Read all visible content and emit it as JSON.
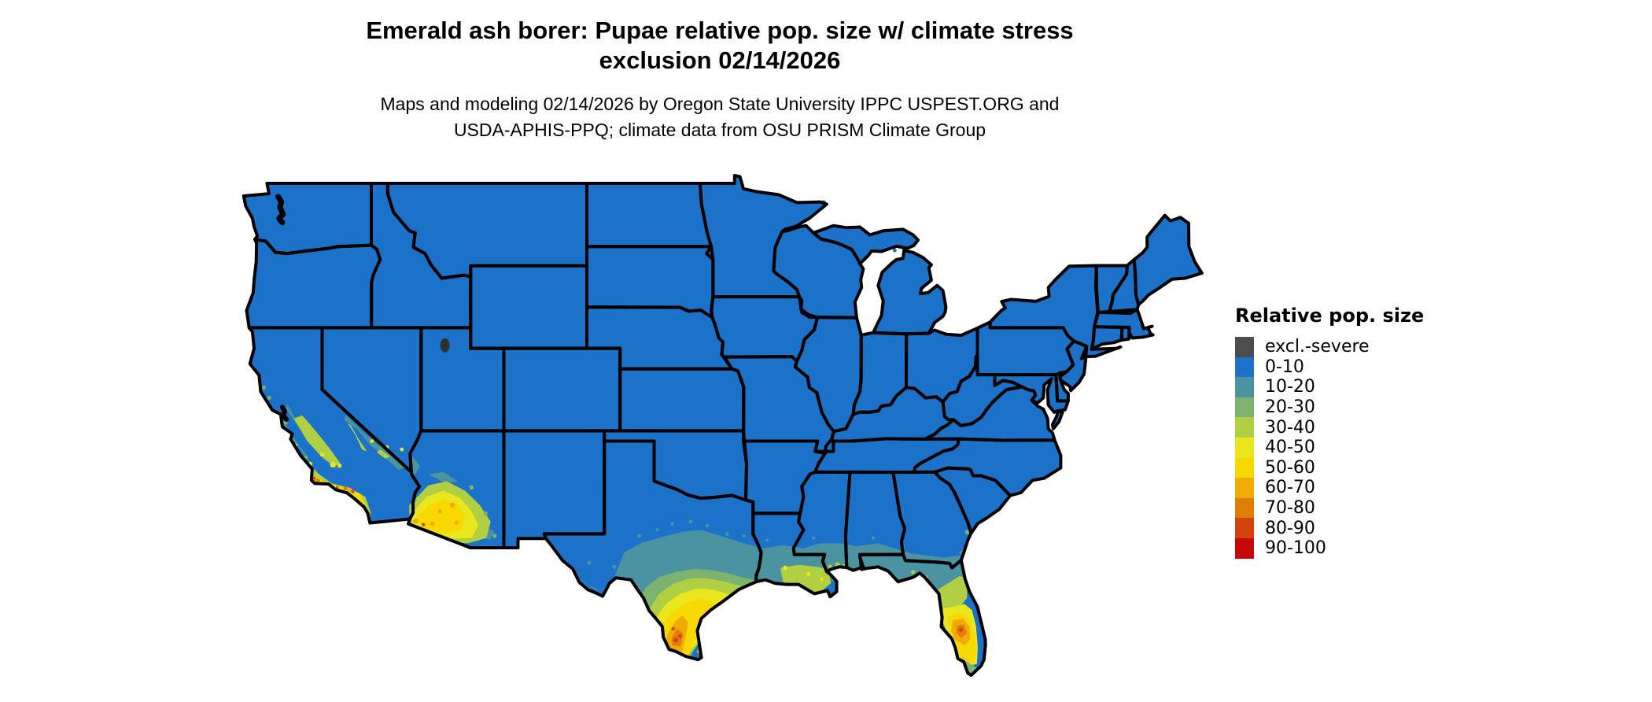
{
  "title": {
    "line1": "Emerald ash borer: Pupae relative pop. size w/ climate stress",
    "line2": "exclusion 02/14/2026"
  },
  "subtitle": {
    "line1": "Maps and modeling 02/14/2026 by Oregon State University IPPC USPEST.ORG and",
    "line2": "USDA-APHIS-PPQ; climate data from OSU PRISM Climate Group"
  },
  "legend": {
    "title": "Relative pop. size",
    "items": [
      {
        "label": "excl.-severe",
        "color": "#4d4d4d"
      },
      {
        "label": "0-10",
        "color": "#1c72c8"
      },
      {
        "label": "10-20",
        "color": "#4b93a1"
      },
      {
        "label": "20-30",
        "color": "#7cb46f"
      },
      {
        "label": "30-40",
        "color": "#b1cf42"
      },
      {
        "label": "40-50",
        "color": "#eae71f"
      },
      {
        "label": "50-60",
        "color": "#f7d800"
      },
      {
        "label": "60-70",
        "color": "#f0ab04"
      },
      {
        "label": "70-80",
        "color": "#e07c08"
      },
      {
        "label": "80-90",
        "color": "#d4420d"
      },
      {
        "label": "90-100",
        "color": "#c50808"
      }
    ]
  },
  "map": {
    "background": "#ffffff",
    "border_color": "#000000",
    "base_category": "0-10",
    "overlays": [
      {
        "id": "gulf-teal-band",
        "category": "10-20"
      },
      {
        "id": "texas-bigbend-teal",
        "category": "10-20"
      },
      {
        "id": "texas-teal-specks",
        "category": "10-20"
      },
      {
        "id": "texas-green-band",
        "category": "20-30"
      },
      {
        "id": "texas-yellowgreen-band",
        "category": "30-40"
      },
      {
        "id": "texas-yellow-band",
        "category": "40-50"
      },
      {
        "id": "texas-gold-core",
        "category": "50-60"
      },
      {
        "id": "texas-orange-blob",
        "category": "60-70"
      },
      {
        "id": "texas-deep-orange",
        "category": "70-80"
      },
      {
        "id": "texas-red-specks",
        "category": "80-90"
      },
      {
        "id": "texas-coast-orange-specks",
        "category": "60-70"
      },
      {
        "id": "louisiana-yellowgreen-delta",
        "category": "30-40"
      },
      {
        "id": "louisiana-yellow-specks",
        "category": "40-50"
      },
      {
        "id": "gulf-coast-yellowgreen-specks",
        "category": "30-40"
      },
      {
        "id": "georgia-coast-teal-strip",
        "category": "10-20"
      },
      {
        "id": "savannah-green-dot",
        "category": "20-30"
      },
      {
        "id": "florida-yellowgreen-band",
        "category": "30-40"
      },
      {
        "id": "florida-yellow-zone",
        "category": "40-50"
      },
      {
        "id": "florida-gold-zone",
        "category": "50-60"
      },
      {
        "id": "florida-orange-blob",
        "category": "60-70"
      },
      {
        "id": "florida-deep-orange-core",
        "category": "70-80"
      },
      {
        "id": "florida-red-speck",
        "category": "80-90"
      },
      {
        "id": "florida-south-green-tip",
        "category": "20-30"
      },
      {
        "id": "florida-keys-green-dots",
        "category": "20-30"
      },
      {
        "id": "arizona-teal-patches",
        "category": "10-20"
      },
      {
        "id": "arizona-yellowgreen-ring",
        "category": "30-40"
      },
      {
        "id": "arizona-yellow-zone",
        "category": "40-50"
      },
      {
        "id": "arizona-gold-core",
        "category": "50-60"
      },
      {
        "id": "arizona-orange-specks",
        "category": "60-70"
      },
      {
        "id": "arizona-red-speck",
        "category": "80-90"
      },
      {
        "id": "arizona-green-specks",
        "category": "20-30"
      },
      {
        "id": "nevada-border-teal-band",
        "category": "10-20"
      },
      {
        "id": "mojave-yellowgreen-streaks",
        "category": "30-40"
      },
      {
        "id": "mojave-yellow-specks",
        "category": "40-50"
      },
      {
        "id": "california-valley-teal",
        "category": "10-20"
      },
      {
        "id": "california-valley-yellowgreen",
        "category": "30-40"
      },
      {
        "id": "california-valley-yellow-specks",
        "category": "40-50"
      },
      {
        "id": "central-coast-teal-strip",
        "category": "10-20"
      },
      {
        "id": "central-coast-green-dots",
        "category": "20-30"
      },
      {
        "id": "central-coast-yellow-dots",
        "category": "40-50"
      },
      {
        "id": "socal-coast-yellowgreen-strip",
        "category": "30-40"
      },
      {
        "id": "socal-coast-gold-strip",
        "category": "50-60"
      },
      {
        "id": "socal-orange-specks",
        "category": "60-70"
      },
      {
        "id": "socal-deep-orange-specks",
        "category": "70-80"
      },
      {
        "id": "socal-red-specks",
        "category": "80-90"
      },
      {
        "id": "san-diego-red-speck",
        "category": "90-100"
      },
      {
        "id": "channel-islands-dots-teal",
        "category": "10-20"
      },
      {
        "id": "channel-islands-dots-yellow",
        "category": "40-50"
      },
      {
        "id": "channel-islands-dots-orange",
        "category": "60-70"
      }
    ]
  }
}
